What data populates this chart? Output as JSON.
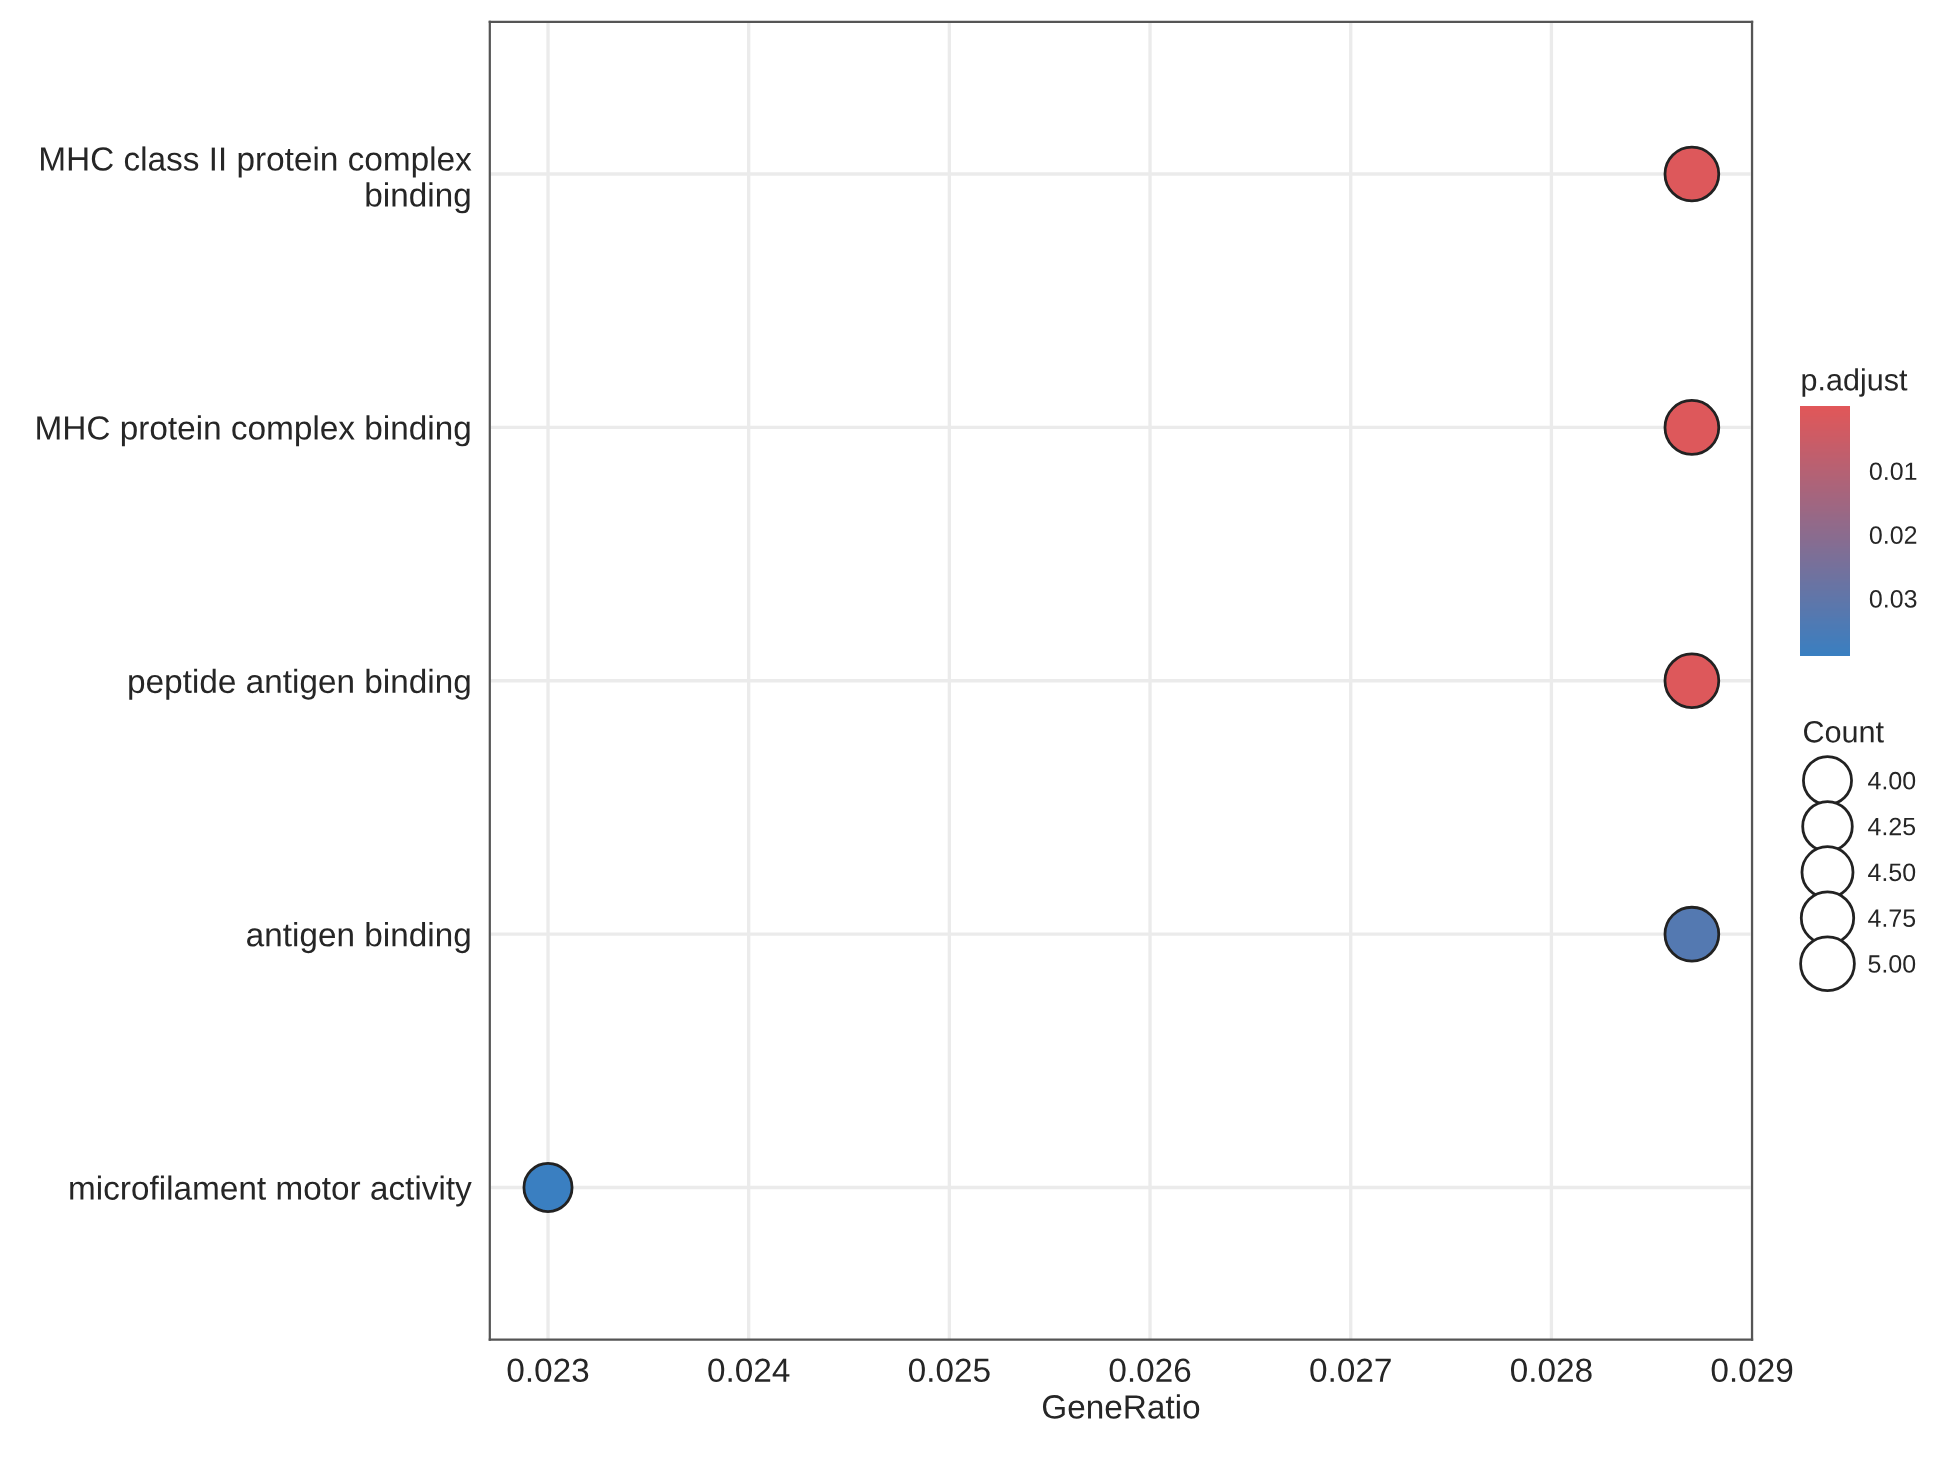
{
  "chart_data": {
    "type": "bubble",
    "orientation": "horizontal",
    "xlabel": "GeneRatio",
    "clabel": "p.adjust",
    "legend_title": "Count",
    "categories": [
      "MHC class II protein complex\nbinding",
      "MHC protein complex binding",
      "peptide antigen binding",
      "antigen binding",
      "microfilament motor activity"
    ],
    "values": [
      0.0287,
      0.0287,
      0.0287,
      0.0287,
      0.023
    ],
    "sizes": [
      5,
      5,
      5,
      5,
      4
    ],
    "cvalues": [
      0.001,
      0.001,
      0.001,
      0.033,
      0.039
    ],
    "size_legend": [
      {
        "value": 4,
        "label": "4.00"
      },
      {
        "value": 4.25,
        "label": "4.25"
      },
      {
        "value": 4.5,
        "label": "4.50"
      },
      {
        "value": 4.75,
        "label": "4.75"
      },
      {
        "value": 5,
        "label": "5.00"
      }
    ],
    "clim": [
      0.039,
      0.0
    ],
    "cticks": [
      0.01,
      0.02,
      0.03
    ],
    "xlim": [
      0.02271,
      0.029
    ],
    "xticks": [
      0.023,
      0.024,
      0.025,
      0.026,
      0.027,
      0.028,
      0.029
    ],
    "grid": true
  }
}
